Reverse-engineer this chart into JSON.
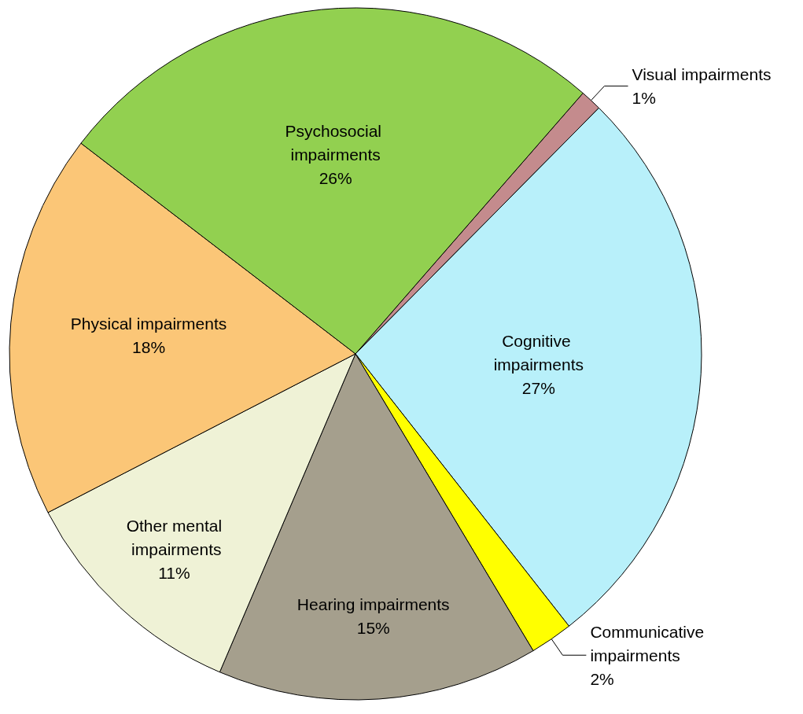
{
  "chart_data": {
    "type": "pie",
    "categories": [
      "Visual impairments",
      "Cognitive impairments",
      "Communicative impairments",
      "Hearing impairments",
      "Other mental impairments",
      "Physical impairments",
      "Psychosocial impairments"
    ],
    "values": [
      1,
      27,
      2,
      15,
      11,
      18,
      26
    ],
    "value_labels": [
      "1%",
      "27%",
      "2%",
      "15%",
      "11%",
      "18%",
      "26%"
    ],
    "colors": [
      "#c48b8d",
      "#b8f0fa",
      "#ffff00",
      "#a59f8d",
      "#eff2d6",
      "#fbc677",
      "#92d050"
    ],
    "legend": false
  }
}
